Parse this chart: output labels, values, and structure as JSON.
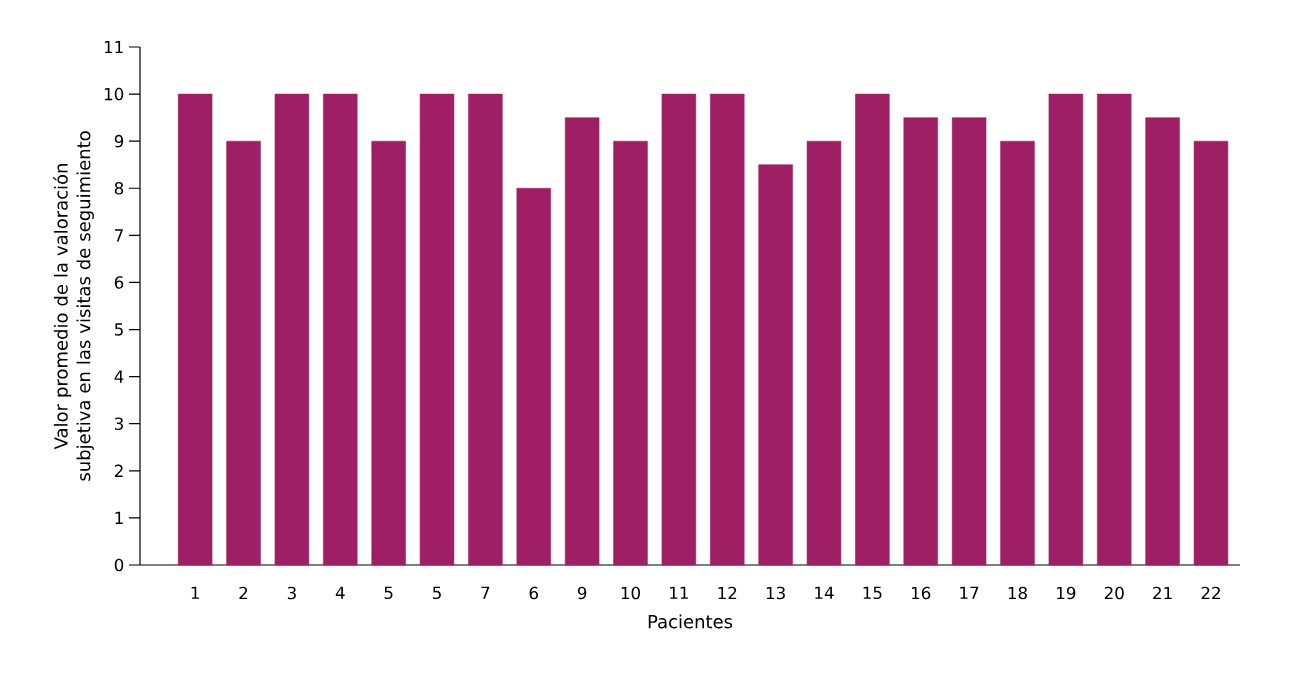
{
  "chart_data": {
    "type": "bar",
    "xlabel": "Pacientes",
    "ylabel": "Valor promedio de la valoración subjetiva en las visitas de seguimiento",
    "categories": [
      "1",
      "2",
      "3",
      "4",
      "5",
      "5",
      "7",
      "6",
      "9",
      "10",
      "11",
      "12",
      "13",
      "14",
      "15",
      "16",
      "17",
      "18",
      "19",
      "20",
      "21",
      "22"
    ],
    "values": [
      10,
      9,
      10,
      10,
      9,
      10,
      10,
      8,
      9.5,
      9,
      10,
      10,
      8.5,
      9,
      10,
      9.5,
      9.5,
      9,
      10,
      10,
      9.5,
      9
    ],
    "color": "#9e1f63",
    "ylim": [
      0,
      11
    ],
    "yticks": [
      0,
      1,
      2,
      3,
      4,
      5,
      6,
      7,
      8,
      9,
      10,
      11
    ],
    "grid": false
  }
}
